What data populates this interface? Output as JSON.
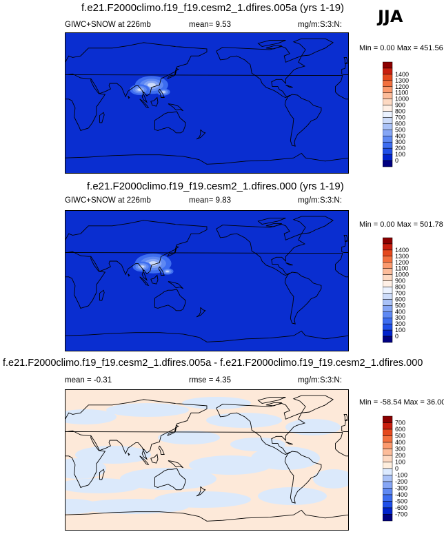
{
  "season": "JJA",
  "chart_data": [
    {
      "type": "heatmap",
      "title": "f.e21.F2000climo.f19_f19.cesm2_1.dfires.005a (yrs 1-19)",
      "left_label": "GIWC+SNOW at 226mb",
      "mean_text": "mean=   9.53",
      "units": "mg/m:S:3:N:",
      "minmax_text": "Min =  0.00 Max = 451.56",
      "min": 0.0,
      "max": 451.56,
      "colorbar_levels": [
        "0",
        "100",
        "200",
        "300",
        "400",
        "500",
        "600",
        "700",
        "800",
        "900",
        "1000",
        "1100",
        "1200",
        "1300",
        "1400"
      ],
      "colorbar_colors": [
        "#000080",
        "#0022cc",
        "#1f4fe8",
        "#3d6df0",
        "#5f89f3",
        "#86a6f5",
        "#aac2f7",
        "#cddcfa",
        "#ebf2ff",
        "#fff0e6",
        "#fdd9c2",
        "#fcbc9a",
        "#fb9a6e",
        "#f2703f",
        "#e4481d",
        "#c81e0e",
        "#8b0000"
      ],
      "field_color": "#0a2ed0",
      "hotspots": [
        {
          "lon": 110,
          "lat": 23,
          "value": 300
        },
        {
          "lon": 95,
          "lat": 17,
          "value": 180
        },
        {
          "lon": 125,
          "lat": 14,
          "value": 120
        }
      ]
    },
    {
      "type": "heatmap",
      "title": "f.e21.F2000climo.f19_f19.cesm2_1.dfires.000 (yrs 1-19)",
      "left_label": "GIWC+SNOW at 226mb",
      "mean_text": "mean=   9.83",
      "units": "mg/m:S:3:N:",
      "minmax_text": "Min =  0.00 Max = 501.78",
      "min": 0.0,
      "max": 501.78,
      "colorbar_levels": [
        "0",
        "100",
        "200",
        "300",
        "400",
        "500",
        "600",
        "700",
        "800",
        "900",
        "1000",
        "1100",
        "1200",
        "1300",
        "1400"
      ],
      "colorbar_colors": [
        "#000080",
        "#0022cc",
        "#1f4fe8",
        "#3d6df0",
        "#5f89f3",
        "#86a6f5",
        "#aac2f7",
        "#cddcfa",
        "#ebf2ff",
        "#fff0e6",
        "#fdd9c2",
        "#fcbc9a",
        "#fb9a6e",
        "#f2703f",
        "#e4481d",
        "#c81e0e",
        "#8b0000"
      ],
      "field_color": "#0a2ed0",
      "hotspots": [
        {
          "lon": 112,
          "lat": 22,
          "value": 330
        },
        {
          "lon": 98,
          "lat": 18,
          "value": 170
        },
        {
          "lon": 130,
          "lat": 12,
          "value": 110
        }
      ]
    },
    {
      "type": "heatmap",
      "title": "f.e21.F2000climo.f19_f19.cesm2_1.dfires.005a - f.e21.F2000climo.f19_f19.cesm2_1.dfires.000",
      "left_label": "mean =  -0.31",
      "mean_text": "rmse =   4.35",
      "units": "mg/m:S:3:N:",
      "minmax_text": "Min = -58.54 Max = 36.00",
      "min": -58.54,
      "max": 36.0,
      "colorbar_levels": [
        "-700",
        "-600",
        "-500",
        "-400",
        "-300",
        "-200",
        "-100",
        "0",
        "100",
        "200",
        "300",
        "400",
        "500",
        "600",
        "700"
      ],
      "colorbar_colors": [
        "#000080",
        "#0022cc",
        "#1f4fe8",
        "#3d6df0",
        "#5f89f3",
        "#86a6f5",
        "#aac2f7",
        "#dceaff",
        "#ffeedd",
        "#fdd9c2",
        "#fcbc9a",
        "#fb9a6e",
        "#f2703f",
        "#e4481d",
        "#c81e0e",
        "#8b0000"
      ],
      "field_color": "#fde9d9",
      "alt_color": "#dbe9fb"
    }
  ]
}
